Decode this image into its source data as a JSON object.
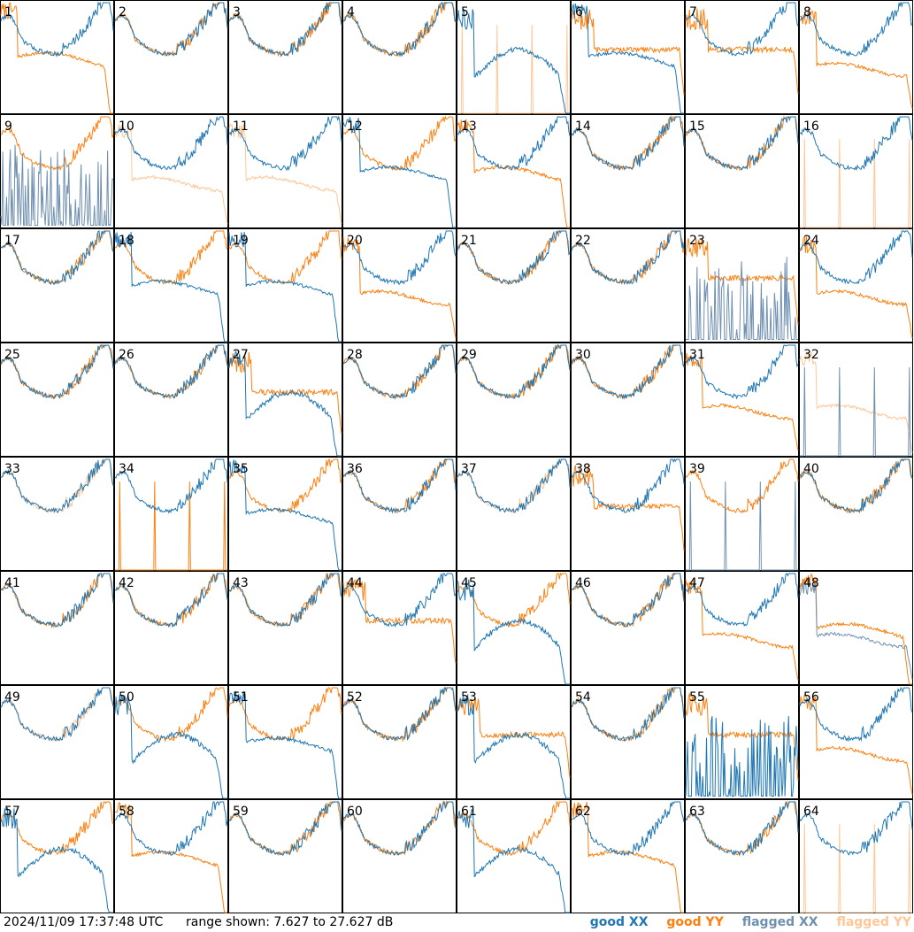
{
  "footer": {
    "timestamp": "2024/11/09 17:37:48 UTC",
    "range_text": "range shown: 7.627 to 27.627 dB"
  },
  "legend": [
    {
      "label": "good XX",
      "color": "#1f77b4"
    },
    {
      "label": "good YY",
      "color": "#ff7f0e"
    },
    {
      "label": "flagged XX",
      "color": "#7090b0"
    },
    {
      "label": "flagged YY",
      "color": "#ffc796"
    }
  ],
  "chart_data": {
    "type": "line",
    "layout": "grid",
    "rows": 8,
    "cols": 8,
    "ylim": [
      7.627,
      27.627
    ],
    "yunit": "dB",
    "grid": false,
    "panels": [
      {
        "label": "1",
        "xx": "good",
        "yy": "good",
        "xx_shape": "normal",
        "yy_shape": "lowfall"
      },
      {
        "label": "2",
        "xx": "good",
        "yy": "good",
        "xx_shape": "normal",
        "yy_shape": "normal"
      },
      {
        "label": "3",
        "xx": "good",
        "yy": "good",
        "xx_shape": "normal",
        "yy_shape": "normal"
      },
      {
        "label": "4",
        "xx": "good",
        "yy": "good",
        "xx_shape": "normal",
        "yy_shape": "normal"
      },
      {
        "label": "5",
        "xx": "good",
        "yy": "flagged",
        "xx_shape": "dip",
        "yy_shape": "dead"
      },
      {
        "label": "6",
        "xx": "good",
        "yy": "good",
        "xx_shape": "lowfall",
        "yy_shape": "flat"
      },
      {
        "label": "7",
        "xx": "good",
        "yy": "good",
        "xx_shape": "normal",
        "yy_shape": "flat"
      },
      {
        "label": "8",
        "xx": "good",
        "yy": "good",
        "xx_shape": "normal",
        "yy_shape": "mid"
      },
      {
        "label": "9",
        "xx": "flagged",
        "yy": "good",
        "xx_shape": "spikes",
        "yy_shape": "normal"
      },
      {
        "label": "10",
        "xx": "good",
        "yy": "flagged",
        "xx_shape": "normal",
        "yy_shape": "mid"
      },
      {
        "label": "11",
        "xx": "good",
        "yy": "flagged",
        "xx_shape": "normal",
        "yy_shape": "mid"
      },
      {
        "label": "12",
        "xx": "good",
        "yy": "good",
        "xx_shape": "lowfall",
        "yy_shape": "normal"
      },
      {
        "label": "13",
        "xx": "good",
        "yy": "good",
        "xx_shape": "normal",
        "yy_shape": "lowfall"
      },
      {
        "label": "14",
        "xx": "good",
        "yy": "good",
        "xx_shape": "normal",
        "yy_shape": "normal"
      },
      {
        "label": "15",
        "xx": "good",
        "yy": "good",
        "xx_shape": "normal",
        "yy_shape": "normal"
      },
      {
        "label": "16",
        "xx": "good",
        "yy": "flagged",
        "xx_shape": "normal",
        "yy_shape": "dead"
      },
      {
        "label": "17",
        "xx": "good",
        "yy": "good",
        "xx_shape": "normal",
        "yy_shape": "normal"
      },
      {
        "label": "18",
        "xx": "good",
        "yy": "good",
        "xx_shape": "lowfall",
        "yy_shape": "normal"
      },
      {
        "label": "19",
        "xx": "good",
        "yy": "good",
        "xx_shape": "lowfall",
        "yy_shape": "normal"
      },
      {
        "label": "20",
        "xx": "good",
        "yy": "good",
        "xx_shape": "normal",
        "yy_shape": "mid"
      },
      {
        "label": "21",
        "xx": "good",
        "yy": "good",
        "xx_shape": "normal",
        "yy_shape": "normal"
      },
      {
        "label": "22",
        "xx": "good",
        "yy": "good",
        "xx_shape": "normal",
        "yy_shape": "normal"
      },
      {
        "label": "23",
        "xx": "flagged",
        "yy": "good",
        "xx_shape": "spikes",
        "yy_shape": "flat"
      },
      {
        "label": "24",
        "xx": "good",
        "yy": "good",
        "xx_shape": "normal",
        "yy_shape": "mid"
      },
      {
        "label": "25",
        "xx": "good",
        "yy": "good",
        "xx_shape": "normal",
        "yy_shape": "normal"
      },
      {
        "label": "26",
        "xx": "good",
        "yy": "good",
        "xx_shape": "normal",
        "yy_shape": "normal"
      },
      {
        "label": "27",
        "xx": "good",
        "yy": "good",
        "xx_shape": "dip",
        "yy_shape": "flat"
      },
      {
        "label": "28",
        "xx": "good",
        "yy": "good",
        "xx_shape": "normal",
        "yy_shape": "normal"
      },
      {
        "label": "29",
        "xx": "good",
        "yy": "good",
        "xx_shape": "normal",
        "yy_shape": "normal"
      },
      {
        "label": "30",
        "xx": "good",
        "yy": "good",
        "xx_shape": "normal",
        "yy_shape": "normal"
      },
      {
        "label": "31",
        "xx": "good",
        "yy": "good",
        "xx_shape": "normal",
        "yy_shape": "mid"
      },
      {
        "label": "32",
        "xx": "flagged",
        "yy": "flagged",
        "xx_shape": "dead",
        "yy_shape": "mid"
      },
      {
        "label": "33",
        "xx": "good",
        "yy": "flagged",
        "xx_shape": "normal",
        "yy_shape": "normal"
      },
      {
        "label": "34",
        "xx": "good",
        "yy": "good",
        "xx_shape": "normal",
        "yy_shape": "dead"
      },
      {
        "label": "35",
        "xx": "good",
        "yy": "good",
        "xx_shape": "lowfall",
        "yy_shape": "normal"
      },
      {
        "label": "36",
        "xx": "good",
        "yy": "good",
        "xx_shape": "normal",
        "yy_shape": "normal"
      },
      {
        "label": "37",
        "xx": "good",
        "yy": "flagged",
        "xx_shape": "normal",
        "yy_shape": "normal"
      },
      {
        "label": "38",
        "xx": "good",
        "yy": "good",
        "xx_shape": "normal",
        "yy_shape": "flat"
      },
      {
        "label": "39",
        "xx": "flagged",
        "yy": "good",
        "xx_shape": "dead",
        "yy_shape": "normal"
      },
      {
        "label": "40",
        "xx": "good",
        "yy": "good",
        "xx_shape": "normal",
        "yy_shape": "normal"
      },
      {
        "label": "41",
        "xx": "good",
        "yy": "good",
        "xx_shape": "normal",
        "yy_shape": "normal"
      },
      {
        "label": "42",
        "xx": "good",
        "yy": "good",
        "xx_shape": "normal",
        "yy_shape": "normal"
      },
      {
        "label": "43",
        "xx": "good",
        "yy": "good",
        "xx_shape": "normal",
        "yy_shape": "normal"
      },
      {
        "label": "44",
        "xx": "good",
        "yy": "good",
        "xx_shape": "normal",
        "yy_shape": "flat"
      },
      {
        "label": "45",
        "xx": "good",
        "yy": "good",
        "xx_shape": "dip",
        "yy_shape": "normal"
      },
      {
        "label": "46",
        "xx": "good",
        "yy": "good",
        "xx_shape": "normal",
        "yy_shape": "normal"
      },
      {
        "label": "47",
        "xx": "good",
        "yy": "good",
        "xx_shape": "normal",
        "yy_shape": "mid"
      },
      {
        "label": "48",
        "xx": "flagged",
        "yy": "good",
        "xx_shape": "mid",
        "yy_shape": "lowfall"
      },
      {
        "label": "49",
        "xx": "good",
        "yy": "flagged",
        "xx_shape": "normal",
        "yy_shape": "normal"
      },
      {
        "label": "50",
        "xx": "good",
        "yy": "good",
        "xx_shape": "dip",
        "yy_shape": "normal"
      },
      {
        "label": "51",
        "xx": "good",
        "yy": "good",
        "xx_shape": "lowfall",
        "yy_shape": "normal"
      },
      {
        "label": "52",
        "xx": "good",
        "yy": "good",
        "xx_shape": "normal",
        "yy_shape": "normal"
      },
      {
        "label": "53",
        "xx": "good",
        "yy": "good",
        "xx_shape": "dip",
        "yy_shape": "flat"
      },
      {
        "label": "54",
        "xx": "good",
        "yy": "good",
        "xx_shape": "normal",
        "yy_shape": "normal"
      },
      {
        "label": "55",
        "xx": "good",
        "yy": "good",
        "xx_shape": "spikes",
        "yy_shape": "flat"
      },
      {
        "label": "56",
        "xx": "good",
        "yy": "good",
        "xx_shape": "normal",
        "yy_shape": "mid"
      },
      {
        "label": "57",
        "xx": "good",
        "yy": "good",
        "xx_shape": "dip",
        "yy_shape": "normal"
      },
      {
        "label": "58",
        "xx": "good",
        "yy": "good",
        "xx_shape": "normal",
        "yy_shape": "lowfall"
      },
      {
        "label": "59",
        "xx": "good",
        "yy": "good",
        "xx_shape": "normal",
        "yy_shape": "normal"
      },
      {
        "label": "60",
        "xx": "good",
        "yy": "good",
        "xx_shape": "normal",
        "yy_shape": "normal"
      },
      {
        "label": "61",
        "xx": "good",
        "yy": "good",
        "xx_shape": "dip",
        "yy_shape": "normal"
      },
      {
        "label": "62",
        "xx": "good",
        "yy": "good",
        "xx_shape": "normal",
        "yy_shape": "lowfall"
      },
      {
        "label": "63",
        "xx": "good",
        "yy": "good",
        "xx_shape": "normal",
        "yy_shape": "normal"
      },
      {
        "label": "64",
        "xx": "good",
        "yy": "flagged",
        "xx_shape": "normal",
        "yy_shape": "dead"
      }
    ]
  }
}
